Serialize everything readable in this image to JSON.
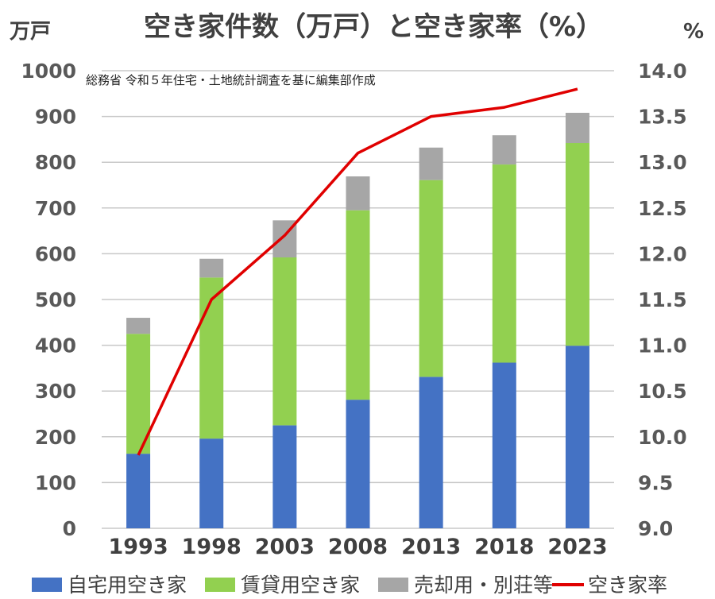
{
  "chart_data": {
    "type": "bar",
    "stacked": true,
    "title": "空き家件数（万戸）と空き家率（%）",
    "note": "総務省 令和５年住宅・土地統計調査を基に編集部作成",
    "y_left_unit": "万戸",
    "y_right_unit": "%",
    "ylim_left": [
      0,
      1000
    ],
    "ylim_right": [
      9.0,
      14.0
    ],
    "yticks_left": [
      "0",
      "100",
      "200",
      "300",
      "400",
      "500",
      "600",
      "700",
      "800",
      "900",
      "1000"
    ],
    "yticks_right": [
      "9.0",
      "9.5",
      "10.0",
      "10.5",
      "11.0",
      "11.5",
      "12.0",
      "12.5",
      "13.0",
      "13.5",
      "14.0"
    ],
    "categories": [
      "1993",
      "1998",
      "2003",
      "2008",
      "2013",
      "2018",
      "2023"
    ],
    "grid": true,
    "legend_position": "bottom",
    "series": [
      {
        "name": "自宅用空き家",
        "type": "bar",
        "axis": "left",
        "color": "#4472c4",
        "values": [
          163,
          196,
          225,
          281,
          331,
          362,
          399
        ]
      },
      {
        "name": "賃貸用空き家",
        "type": "bar",
        "axis": "left",
        "color": "#92d050",
        "values": [
          262,
          352,
          367,
          414,
          430,
          433,
          443
        ]
      },
      {
        "name": "売却用・別荘等",
        "type": "bar",
        "axis": "left",
        "color": "#a6a6a6",
        "values": [
          35,
          41,
          81,
          74,
          71,
          64,
          66
        ]
      },
      {
        "name": "空き家率",
        "type": "line",
        "axis": "right",
        "color": "#e00000",
        "values": [
          9.8,
          11.5,
          12.2,
          13.1,
          13.5,
          13.6,
          13.8
        ]
      }
    ]
  }
}
